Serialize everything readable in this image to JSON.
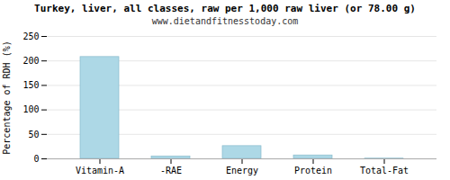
{
  "chart_data": {
    "type": "bar",
    "title": "Turkey, liver, all classes, raw per 1,000 raw liver (or 78.00 g)",
    "subtitle": "www.dietandfitnesstoday.com",
    "categories": [
      "Vitamin-A",
      "-RAE",
      "Energy",
      "Protein",
      "Total-Fat"
    ],
    "values": [
      208,
      5,
      26,
      7,
      0.5
    ],
    "color": "#add8e6",
    "ylabel": "Percentage of RDH (%)",
    "ylim": [
      0,
      250
    ],
    "yticks": [
      0,
      50,
      100,
      150,
      200,
      250
    ],
    "grid": true
  }
}
